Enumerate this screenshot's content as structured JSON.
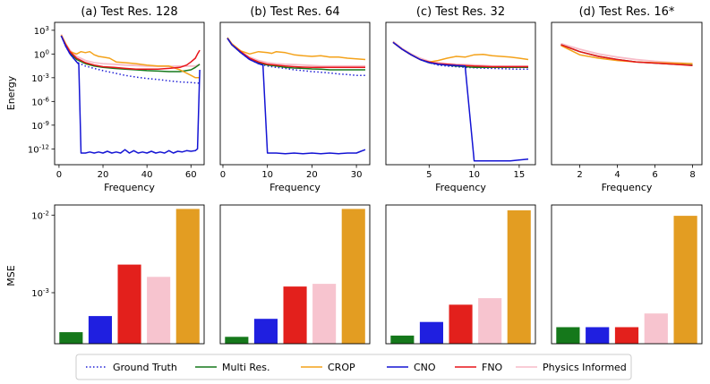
{
  "figure": {
    "row_labels": {
      "energy": "Energy",
      "mse": "MSE"
    },
    "xlabel": "Frequency"
  },
  "legend": [
    {
      "name": "Ground Truth",
      "color": "#1f1fd6",
      "style": "dotted"
    },
    {
      "name": "Multi Res.",
      "color": "#15781b",
      "style": "solid"
    },
    {
      "name": "CROP",
      "color": "#f4a21a",
      "style": "solid"
    },
    {
      "name": "CNO",
      "color": "#1414d4",
      "style": "solid"
    },
    {
      "name": "FNO",
      "color": "#e8141a",
      "style": "solid"
    },
    {
      "name": "Physics Informed",
      "color": "#f7bcc8",
      "style": "solid"
    }
  ],
  "chart_data": [
    {
      "type": "line",
      "panel": "a-energy",
      "title": "(a) Test Res. 128",
      "xlabel": "Frequency",
      "ylabel": "Energy",
      "yscale": "log",
      "xlim": [
        -2,
        66
      ],
      "ylim": [
        1e-14,
        10000.0
      ],
      "xticks": [
        0,
        20,
        40,
        60
      ],
      "yticks": [
        1000,
        1,
        0.001,
        1e-06,
        1e-09,
        1e-12
      ],
      "yticklabels": [
        "10^3",
        "10^0",
        "10^-3",
        "10^-6",
        "10^-9",
        "10^-12"
      ],
      "series": [
        {
          "name": "Physics Informed",
          "x": [
            1,
            3,
            5,
            8,
            12,
            16,
            20,
            25,
            30,
            35,
            40,
            45,
            50,
            55,
            60,
            62,
            64
          ],
          "y": [
            300,
            20,
            3,
            0.5,
            0.15,
            0.08,
            0.06,
            0.05,
            0.04,
            0.035,
            0.03,
            0.028,
            0.028,
            0.03,
            0.03,
            0.03,
            0.05
          ]
        },
        {
          "name": "Ground Truth",
          "x": [
            1,
            3,
            5,
            8,
            12,
            16,
            20,
            25,
            30,
            35,
            40,
            45,
            50,
            55,
            60,
            64
          ],
          "y": [
            200,
            10,
            1,
            0.1,
            0.03,
            0.015,
            0.008,
            0.004,
            0.002,
            0.0012,
            0.0008,
            0.0006,
            0.0004,
            0.0003,
            0.00025,
            0.0002
          ]
        },
        {
          "name": "Multi Res.",
          "x": [
            1,
            3,
            5,
            8,
            12,
            16,
            20,
            25,
            30,
            35,
            40,
            45,
            50,
            55,
            60,
            62,
            64
          ],
          "y": [
            200,
            15,
            1.5,
            0.2,
            0.06,
            0.03,
            0.02,
            0.015,
            0.012,
            0.01,
            0.008,
            0.007,
            0.006,
            0.006,
            0.01,
            0.02,
            0.05
          ]
        },
        {
          "name": "CROP",
          "x": [
            1,
            3,
            5,
            8,
            10,
            12,
            14,
            16,
            18,
            20,
            23,
            26,
            30,
            35,
            40,
            45,
            50,
            55,
            60,
            62,
            64
          ],
          "y": [
            250,
            20,
            2,
            1,
            2,
            1.5,
            2,
            0.8,
            0.5,
            0.4,
            0.3,
            0.1,
            0.08,
            0.06,
            0.04,
            0.03,
            0.03,
            0.01,
            0.002,
            0.001,
            0.001
          ]
        },
        {
          "name": "FNO",
          "x": [
            1,
            3,
            5,
            8,
            12,
            16,
            20,
            25,
            30,
            35,
            40,
            45,
            50,
            55,
            58,
            60,
            62,
            63,
            64
          ],
          "y": [
            200,
            15,
            2,
            0.3,
            0.08,
            0.04,
            0.025,
            0.02,
            0.015,
            0.012,
            0.012,
            0.012,
            0.015,
            0.02,
            0.04,
            0.1,
            0.3,
            1,
            3
          ]
        },
        {
          "name": "CNO",
          "x": [
            1,
            3,
            5,
            8,
            9,
            10,
            12,
            14,
            16,
            18,
            20,
            22,
            24,
            26,
            28,
            30,
            32,
            34,
            36,
            38,
            40,
            42,
            44,
            46,
            48,
            50,
            52,
            54,
            56,
            58,
            60,
            62,
            63,
            64
          ],
          "y": [
            200,
            10,
            1,
            0.1,
            0.05,
            3e-13,
            3e-13,
            4e-13,
            3e-13,
            4e-13,
            3e-13,
            5e-13,
            3e-13,
            4e-13,
            3e-13,
            8e-13,
            3e-13,
            6e-13,
            3e-13,
            4e-13,
            3e-13,
            5e-13,
            3e-13,
            4e-13,
            3e-13,
            6e-13,
            3e-13,
            5e-13,
            4e-13,
            6e-13,
            5e-13,
            6e-13,
            1e-12,
            0.01
          ]
        }
      ]
    },
    {
      "type": "line",
      "panel": "b-energy",
      "title": "(b) Test Res. 64",
      "xlabel": "Frequency",
      "ylabel": "",
      "yscale": "log",
      "xlim": [
        -0.6,
        33
      ],
      "ylim": [
        1e-14,
        10000.0
      ],
      "xticks": [
        0,
        10,
        20,
        30
      ],
      "series": [
        {
          "name": "Physics Informed",
          "x": [
            1,
            2,
            4,
            6,
            8,
            10,
            12,
            14,
            16,
            18,
            20,
            22,
            24,
            26,
            28,
            30,
            32
          ],
          "y": [
            100,
            20,
            2,
            0.4,
            0.15,
            0.08,
            0.06,
            0.05,
            0.045,
            0.04,
            0.035,
            0.03,
            0.03,
            0.03,
            0.03,
            0.03,
            0.03
          ]
        },
        {
          "name": "Ground Truth",
          "x": [
            1,
            2,
            4,
            6,
            8,
            10,
            12,
            14,
            16,
            18,
            20,
            22,
            24,
            26,
            28,
            30,
            32
          ],
          "y": [
            100,
            15,
            1.5,
            0.2,
            0.06,
            0.03,
            0.02,
            0.015,
            0.01,
            0.008,
            0.006,
            0.005,
            0.004,
            0.003,
            0.0025,
            0.002,
            0.002
          ]
        },
        {
          "name": "Multi Res.",
          "x": [
            1,
            2,
            4,
            6,
            8,
            10,
            12,
            14,
            16,
            18,
            20,
            22,
            24,
            26,
            28,
            30,
            32
          ],
          "y": [
            100,
            15,
            1.5,
            0.25,
            0.08,
            0.04,
            0.03,
            0.02,
            0.017,
            0.015,
            0.013,
            0.012,
            0.01,
            0.01,
            0.01,
            0.01,
            0.01
          ]
        },
        {
          "name": "CROP",
          "x": [
            1,
            2,
            4,
            6,
            8,
            10,
            11,
            12,
            14,
            16,
            18,
            20,
            22,
            24,
            26,
            28,
            30,
            32
          ],
          "y": [
            120,
            20,
            2.5,
            1,
            2,
            1.5,
            1.2,
            2,
            1.5,
            0.8,
            0.6,
            0.5,
            0.6,
            0.4,
            0.4,
            0.3,
            0.25,
            0.2
          ]
        },
        {
          "name": "FNO",
          "x": [
            1,
            2,
            4,
            6,
            8,
            10,
            12,
            14,
            16,
            18,
            20,
            22,
            24,
            26,
            28,
            30,
            32
          ],
          "y": [
            100,
            15,
            2,
            0.3,
            0.1,
            0.05,
            0.04,
            0.03,
            0.025,
            0.022,
            0.02,
            0.02,
            0.02,
            0.02,
            0.02,
            0.02,
            0.02
          ]
        },
        {
          "name": "CNO",
          "x": [
            1,
            2,
            4,
            6,
            8,
            9,
            10,
            12,
            14,
            16,
            18,
            20,
            22,
            24,
            26,
            28,
            30,
            31,
            32
          ],
          "y": [
            100,
            15,
            1.5,
            0.2,
            0.06,
            0.04,
            3e-13,
            3e-13,
            2.5e-13,
            3e-13,
            2.5e-13,
            3e-13,
            2.5e-13,
            3e-13,
            2.5e-13,
            3e-13,
            3e-13,
            5e-13,
            8e-13
          ]
        }
      ]
    },
    {
      "type": "line",
      "panel": "c-energy",
      "title": "(c) Test Res. 32",
      "xlabel": "Frequency",
      "ylabel": "",
      "yscale": "log",
      "xlim": [
        0.2,
        16.8
      ],
      "ylim": [
        1e-14,
        10000.0
      ],
      "xticks": [
        5,
        10,
        15
      ],
      "series": [
        {
          "name": "Physics Informed",
          "x": [
            1,
            2,
            3,
            4,
            5,
            6,
            7,
            8,
            9,
            10,
            11,
            12,
            13,
            14,
            15,
            16
          ],
          "y": [
            40,
            5,
            1,
            0.3,
            0.12,
            0.08,
            0.06,
            0.05,
            0.045,
            0.04,
            0.035,
            0.03,
            0.03,
            0.03,
            0.03,
            0.03
          ]
        },
        {
          "name": "Ground Truth",
          "x": [
            1,
            2,
            3,
            4,
            5,
            6,
            7,
            8,
            9,
            10,
            11,
            12,
            13,
            14,
            15,
            16
          ],
          "y": [
            30,
            4,
            0.8,
            0.2,
            0.08,
            0.04,
            0.03,
            0.025,
            0.02,
            0.018,
            0.016,
            0.015,
            0.014,
            0.013,
            0.012,
            0.012
          ]
        },
        {
          "name": "Multi Res.",
          "x": [
            1,
            2,
            3,
            4,
            5,
            6,
            7,
            8,
            9,
            10,
            11,
            12,
            13,
            14,
            15,
            16
          ],
          "y": [
            30,
            4,
            0.8,
            0.2,
            0.08,
            0.05,
            0.04,
            0.03,
            0.025,
            0.02,
            0.02,
            0.02,
            0.02,
            0.02,
            0.02,
            0.02
          ]
        },
        {
          "name": "CROP",
          "x": [
            1,
            2,
            3,
            4,
            5,
            6,
            7,
            8,
            9,
            10,
            11,
            12,
            13,
            14,
            15,
            16
          ],
          "y": [
            30,
            4,
            0.8,
            0.2,
            0.1,
            0.15,
            0.3,
            0.5,
            0.4,
            0.8,
            0.9,
            0.6,
            0.5,
            0.4,
            0.3,
            0.2
          ]
        },
        {
          "name": "FNO",
          "x": [
            1,
            2,
            3,
            4,
            5,
            6,
            7,
            8,
            9,
            10,
            11,
            12,
            13,
            14,
            15,
            16
          ],
          "y": [
            30,
            4,
            0.8,
            0.2,
            0.1,
            0.06,
            0.05,
            0.04,
            0.035,
            0.03,
            0.028,
            0.025,
            0.025,
            0.025,
            0.025,
            0.025
          ]
        },
        {
          "name": "CNO",
          "x": [
            1,
            2,
            3,
            4,
            5,
            6,
            7,
            8,
            9,
            10,
            11,
            12,
            13,
            14,
            15,
            16
          ],
          "y": [
            30,
            4,
            0.8,
            0.2,
            0.08,
            0.05,
            0.04,
            0.035,
            0.03,
            3e-14,
            3e-14,
            3e-14,
            3e-14,
            3e-14,
            4e-14,
            5e-14
          ]
        }
      ]
    },
    {
      "type": "line",
      "panel": "d-energy",
      "title": "(d) Test Res. 16*",
      "xlabel": "Frequency",
      "ylabel": "",
      "yscale": "log",
      "xlim": [
        0.5,
        8.5
      ],
      "ylim": [
        1e-14,
        10000.0
      ],
      "xticks": [
        2,
        4,
        6,
        8
      ],
      "series": [
        {
          "name": "Physics Informed",
          "x": [
            1,
            2,
            3,
            4,
            5,
            6,
            7,
            8
          ],
          "y": [
            20,
            4,
            1,
            0.4,
            0.2,
            0.12,
            0.08,
            0.06
          ]
        },
        {
          "name": "Multi Res.",
          "x": [
            1,
            2,
            3,
            4,
            5,
            6,
            7,
            8
          ],
          "y": [
            15,
            2,
            0.5,
            0.2,
            0.1,
            0.07,
            0.05,
            0.04
          ]
        },
        {
          "name": "FNO",
          "x": [
            1,
            2,
            3,
            4,
            5,
            6,
            7,
            8
          ],
          "y": [
            15,
            2,
            0.5,
            0.2,
            0.1,
            0.07,
            0.05,
            0.035
          ]
        },
        {
          "name": "CROP",
          "x": [
            1,
            2,
            3,
            4,
            5,
            6,
            7,
            8
          ],
          "y": [
            12,
            0.8,
            0.3,
            0.15,
            0.1,
            0.08,
            0.07,
            0.06
          ]
        }
      ]
    },
    {
      "type": "bar",
      "panel": "a-mse",
      "ylabel": "MSE",
      "yscale": "log",
      "ylim": [
        0.00022,
        0.0135
      ],
      "yticks": [
        0.001,
        0.01
      ],
      "yticklabels": [
        "10^-3",
        "10^-2"
      ],
      "categories": [
        "Multi Res.",
        "CNO",
        "FNO",
        "Physics Informed",
        "CROP"
      ],
      "colors": [
        "#15781b",
        "#1f1fe0",
        "#e3201c",
        "#f7c4cf",
        "#e39d22"
      ],
      "values": [
        0.00031,
        0.0005,
        0.0023,
        0.0016,
        0.012
      ]
    },
    {
      "type": "bar",
      "panel": "b-mse",
      "ylabel": "",
      "yscale": "log",
      "ylim": [
        0.00022,
        0.0135
      ],
      "categories": [
        "Multi Res.",
        "CNO",
        "FNO",
        "Physics Informed",
        "CROP"
      ],
      "colors": [
        "#15781b",
        "#1f1fe0",
        "#e3201c",
        "#f7c4cf",
        "#e39d22"
      ],
      "values": [
        0.00027,
        0.00046,
        0.0012,
        0.0013,
        0.012
      ]
    },
    {
      "type": "bar",
      "panel": "c-mse",
      "ylabel": "",
      "yscale": "log",
      "ylim": [
        0.00022,
        0.0135
      ],
      "categories": [
        "Multi Res.",
        "CNO",
        "FNO",
        "Physics Informed",
        "CROP"
      ],
      "colors": [
        "#15781b",
        "#1f1fe0",
        "#e3201c",
        "#f7c4cf",
        "#e39d22"
      ],
      "values": [
        0.00028,
        0.00042,
        0.0007,
        0.00085,
        0.0115
      ]
    },
    {
      "type": "bar",
      "panel": "d-mse",
      "ylabel": "",
      "yscale": "log",
      "ylim": [
        0.00022,
        0.0135
      ],
      "categories": [
        "Multi Res.",
        "CNO",
        "FNO",
        "Physics Informed",
        "CROP"
      ],
      "colors": [
        "#15781b",
        "#1f1fe0",
        "#e3201c",
        "#f7c4cf",
        "#e39d22"
      ],
      "values": [
        0.00036,
        0.00036,
        0.00036,
        0.00054,
        0.0098
      ]
    }
  ]
}
